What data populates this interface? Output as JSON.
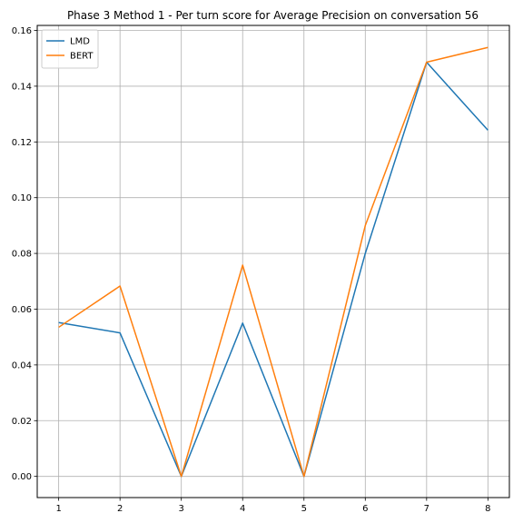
{
  "chart_data": {
    "type": "line",
    "title": "Phase 3 Method 1 - Per turn score for Average Precision on conversation 56",
    "xlabel": "",
    "ylabel": "",
    "x": [
      1,
      2,
      3,
      4,
      5,
      6,
      7,
      8
    ],
    "xlim": [
      0.65,
      8.35
    ],
    "ylim": [
      -0.0076,
      0.1618
    ],
    "xticks": [
      1,
      2,
      3,
      4,
      5,
      6,
      7,
      8
    ],
    "yticks": [
      0.0,
      0.02,
      0.04,
      0.06,
      0.08,
      0.1,
      0.12,
      0.14,
      0.16
    ],
    "ytick_labels": [
      "0.00",
      "0.02",
      "0.04",
      "0.06",
      "0.08",
      "0.10",
      "0.12",
      "0.14",
      "0.16"
    ],
    "grid": true,
    "legend_position": "top-left",
    "series": [
      {
        "name": "LMD",
        "color": "#1f77b4",
        "values": [
          0.0552,
          0.0515,
          0.0,
          0.055,
          0.0,
          0.08,
          0.1486,
          0.1242
        ]
      },
      {
        "name": "BERT",
        "color": "#ff7f0e",
        "values": [
          0.0535,
          0.0683,
          0.0,
          0.0758,
          0.0,
          0.09,
          0.1486,
          0.1539
        ]
      }
    ]
  }
}
